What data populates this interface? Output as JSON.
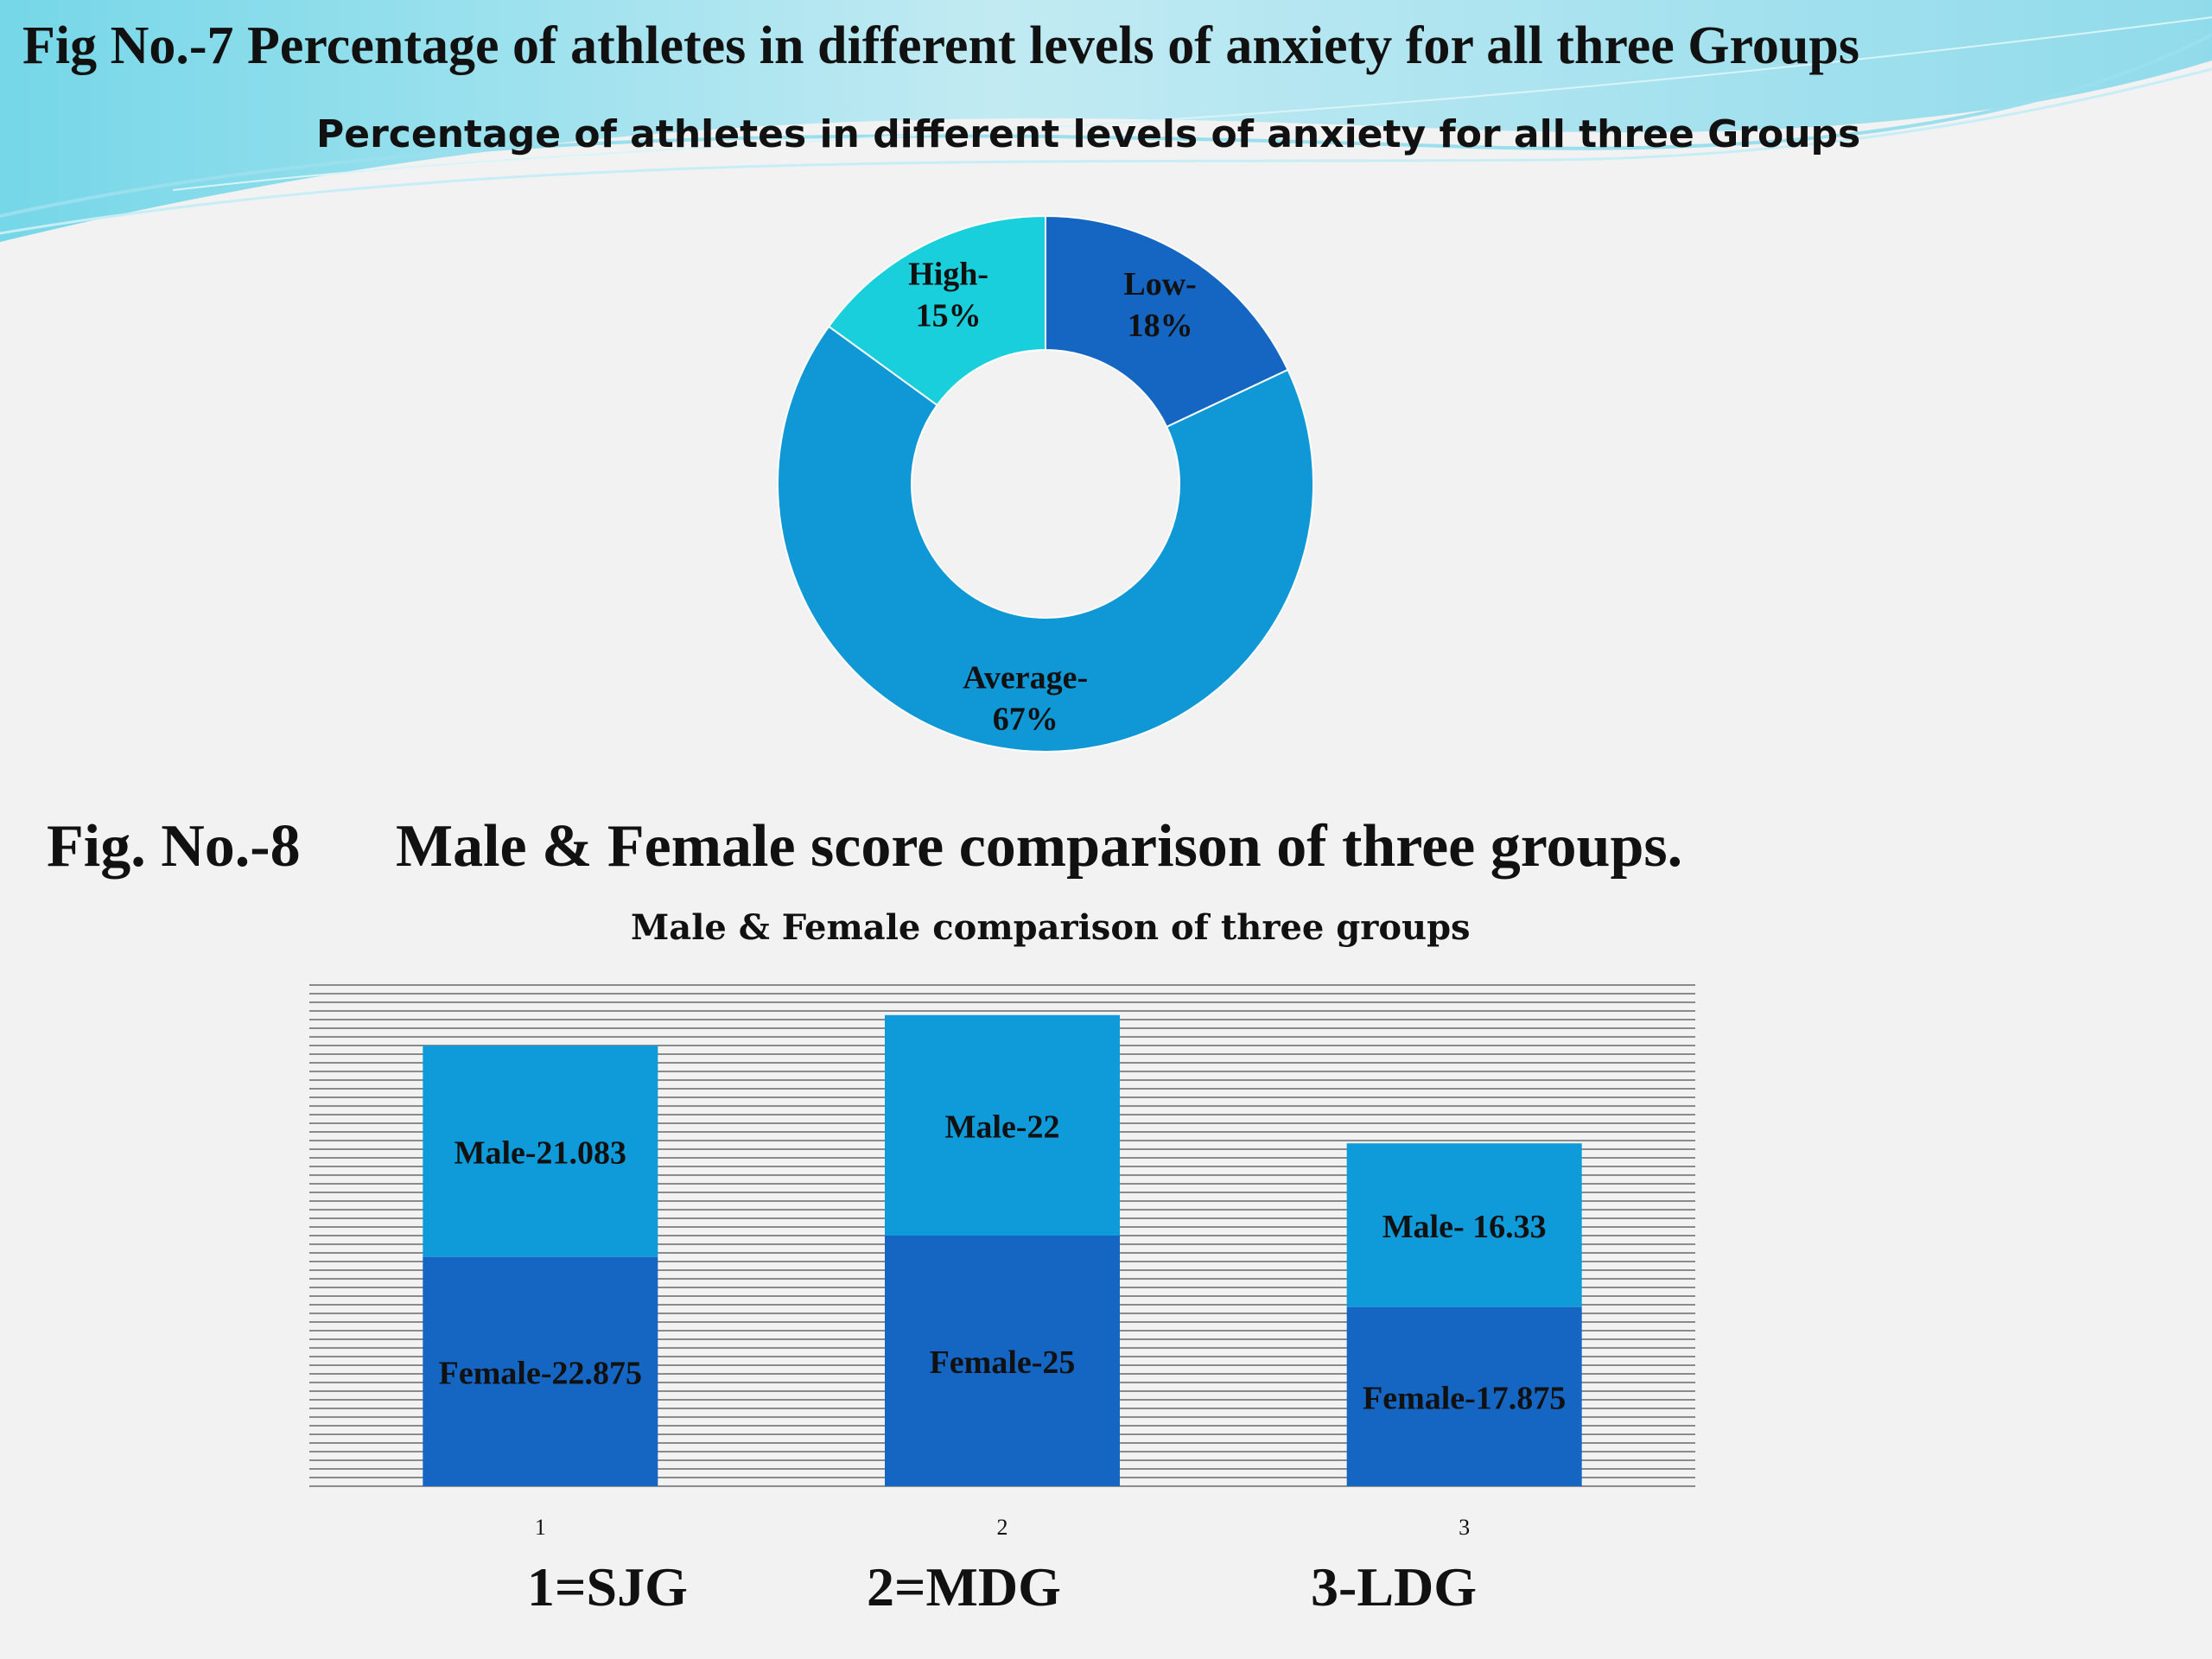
{
  "figure7": {
    "heading": "Fig No.-7 Percentage of athletes in different levels of anxiety for all three Groups"
  },
  "figure8": {
    "label": "Fig. No.-8",
    "heading": "Male & Female score comparison of three groups."
  },
  "group_legend": [
    "1=SJG",
    "2=MDG",
    "3-LDG"
  ],
  "colors": {
    "low": "#1466c2",
    "average": "#0f97d6",
    "high": "#19cfdc",
    "female": "#1466c2",
    "male": "#0f9bd9",
    "background": "#f2f2f2"
  },
  "chart_data": [
    {
      "type": "pie",
      "title": "Percentage of athletes in different levels of anxiety for all three Groups",
      "slices": [
        {
          "label": "Low-",
          "value": 18,
          "display": "18%",
          "color": "#1466c2"
        },
        {
          "label": "Average-",
          "value": 67,
          "display": "67%",
          "color": "#0f97d6"
        },
        {
          "label": "High-",
          "value": 15,
          "display": "15%",
          "color": "#19cfdc"
        }
      ]
    },
    {
      "type": "bar",
      "stacked": true,
      "title": "Male & Female comparison of three groups",
      "categories": [
        "1",
        "2",
        "3"
      ],
      "series": [
        {
          "name": "Female",
          "values": [
            22.875,
            25,
            17.875
          ],
          "labels": [
            "Female-22.875",
            "Female-25",
            "Female-17.875"
          ],
          "color": "#1466c2"
        },
        {
          "name": "Male",
          "values": [
            21.083,
            22,
            16.33
          ],
          "labels": [
            "Male-21.083",
            "Male-22",
            "Male- 16.33"
          ],
          "color": "#0f9bd9"
        }
      ],
      "ylim": [
        0,
        50
      ],
      "grid": true
    }
  ]
}
